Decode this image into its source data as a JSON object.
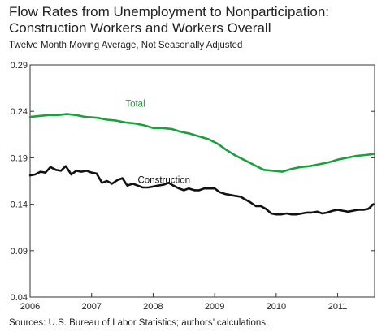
{
  "title_lines": [
    "Flow Rates from Unemployment to Nonparticipation:",
    "Construction Workers and Workers Overall"
  ],
  "subtitle": "Twelve Month Moving Average, Not Seasonally Adjusted",
  "source": "Sources: U.S. Bureau of Labor Statistics; authors’ calculations.",
  "chart_data": {
    "type": "line",
    "title": "Flow Rates from Unemployment to Nonparticipation: Construction Workers and Workers Overall",
    "subtitle": "Twelve Month Moving Average, Not Seasonally Adjusted",
    "xlabel": "",
    "ylabel": "",
    "xlim": [
      2006.0,
      2011.6
    ],
    "ylim": [
      0.04,
      0.29
    ],
    "y_ticks": [
      0.04,
      0.09,
      0.14,
      0.19,
      0.24,
      0.29
    ],
    "y_tick_labels": [
      "0.04",
      "0.09",
      "0.14",
      "0.19",
      "0.24",
      "0.29"
    ],
    "x_ticks": [
      2006,
      2007,
      2008,
      2009,
      2010,
      2011
    ],
    "x_tick_labels": [
      "2006",
      "2007",
      "2008",
      "2009",
      "2010",
      "2011"
    ],
    "grid": false,
    "legend": "inline labels",
    "series": [
      {
        "name": "Total",
        "color": "#1aa03c",
        "label_at": [
          2007.55,
          0.245
        ],
        "x": [
          2006.0,
          2006.15,
          2006.3,
          2006.45,
          2006.6,
          2006.75,
          2006.9,
          2007.1,
          2007.25,
          2007.4,
          2007.55,
          2007.7,
          2007.85,
          2008.0,
          2008.15,
          2008.3,
          2008.45,
          2008.6,
          2008.75,
          2008.9,
          2009.05,
          2009.2,
          2009.35,
          2009.5,
          2009.65,
          2009.8,
          2009.95,
          2010.1,
          2010.25,
          2010.4,
          2010.55,
          2010.7,
          2010.85,
          2011.0,
          2011.15,
          2011.3,
          2011.45,
          2011.58
        ],
        "values": [
          0.234,
          0.235,
          0.236,
          0.236,
          0.237,
          0.236,
          0.234,
          0.233,
          0.231,
          0.23,
          0.228,
          0.227,
          0.225,
          0.222,
          0.222,
          0.221,
          0.218,
          0.216,
          0.213,
          0.21,
          0.205,
          0.198,
          0.192,
          0.187,
          0.182,
          0.177,
          0.176,
          0.175,
          0.178,
          0.18,
          0.181,
          0.183,
          0.185,
          0.188,
          0.19,
          0.192,
          0.193,
          0.194
        ]
      },
      {
        "name": "Construction",
        "color": "#111111",
        "label_at": [
          2007.75,
          0.163
        ],
        "x": [
          2006.0,
          2006.08,
          2006.17,
          2006.25,
          2006.33,
          2006.42,
          2006.5,
          2006.58,
          2006.67,
          2006.75,
          2006.83,
          2006.92,
          2007.0,
          2007.08,
          2007.17,
          2007.25,
          2007.33,
          2007.42,
          2007.5,
          2007.58,
          2007.67,
          2007.75,
          2007.83,
          2007.92,
          2008.0,
          2008.08,
          2008.17,
          2008.25,
          2008.33,
          2008.42,
          2008.5,
          2008.58,
          2008.67,
          2008.75,
          2008.83,
          2008.92,
          2009.0,
          2009.08,
          2009.17,
          2009.25,
          2009.33,
          2009.42,
          2009.5,
          2009.58,
          2009.67,
          2009.75,
          2009.83,
          2009.92,
          2010.0,
          2010.08,
          2010.17,
          2010.25,
          2010.33,
          2010.42,
          2010.5,
          2010.58,
          2010.67,
          2010.75,
          2010.83,
          2010.92,
          2011.0,
          2011.08,
          2011.17,
          2011.25,
          2011.33,
          2011.42,
          2011.5,
          2011.58
        ],
        "values": [
          0.171,
          0.172,
          0.175,
          0.174,
          0.18,
          0.177,
          0.176,
          0.181,
          0.172,
          0.176,
          0.175,
          0.176,
          0.174,
          0.173,
          0.163,
          0.165,
          0.162,
          0.166,
          0.168,
          0.16,
          0.162,
          0.16,
          0.158,
          0.158,
          0.159,
          0.16,
          0.161,
          0.163,
          0.16,
          0.157,
          0.155,
          0.157,
          0.155,
          0.155,
          0.157,
          0.157,
          0.157,
          0.153,
          0.151,
          0.15,
          0.149,
          0.148,
          0.145,
          0.142,
          0.138,
          0.138,
          0.135,
          0.13,
          0.129,
          0.129,
          0.13,
          0.129,
          0.129,
          0.13,
          0.131,
          0.131,
          0.132,
          0.13,
          0.131,
          0.133,
          0.134,
          0.133,
          0.132,
          0.133,
          0.134,
          0.134,
          0.135,
          0.14
        ]
      }
    ]
  }
}
